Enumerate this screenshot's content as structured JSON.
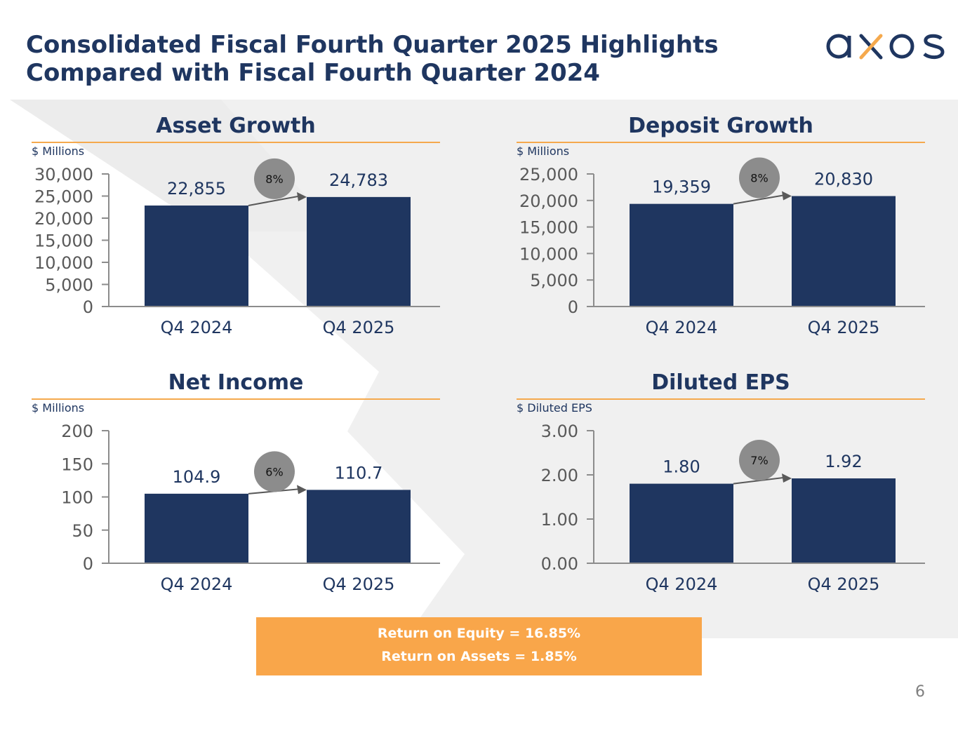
{
  "title": {
    "line1": "Consolidated Fiscal Fourth Quarter 2025 Highlights",
    "line2": "Compared with Fiscal Fourth Quarter 2024"
  },
  "logo": {
    "text": "axos",
    "color": "#1f3660",
    "accent": "#f5a94d"
  },
  "colors": {
    "bar": "#1f3660",
    "title": "#1f3660",
    "rule": "#f5a94d",
    "growth_bubble": "#8c8c8c",
    "callout_bg": "#f9a64a"
  },
  "chart_data": [
    {
      "id": "asset",
      "type": "bar",
      "title": "Asset Growth",
      "unit_label": "$ Millions",
      "categories": [
        "Q4 2024",
        "Q4 2025"
      ],
      "values": [
        22855,
        24783
      ],
      "value_labels": [
        "22,855",
        "24,783"
      ],
      "yticks": [
        0,
        5000,
        10000,
        15000,
        20000,
        25000,
        30000
      ],
      "ytick_labels": [
        "0",
        "5,000",
        "10,000",
        "15,000",
        "20,000",
        "25,000",
        "30,000"
      ],
      "ylim": [
        0,
        30000
      ],
      "growth": "8%"
    },
    {
      "id": "deposit",
      "type": "bar",
      "title": "Deposit Growth",
      "unit_label": "$ Millions",
      "categories": [
        "Q4 2024",
        "Q4 2025"
      ],
      "values": [
        19359,
        20830
      ],
      "value_labels": [
        "19,359",
        "20,830"
      ],
      "yticks": [
        0,
        5000,
        10000,
        15000,
        20000,
        25000
      ],
      "ytick_labels": [
        "0",
        "5,000",
        "10,000",
        "15,000",
        "20,000",
        "25,000"
      ],
      "ylim": [
        0,
        25000
      ],
      "growth": "8%"
    },
    {
      "id": "netincome",
      "type": "bar",
      "title": "Net Income",
      "unit_label": "$ Millions",
      "categories": [
        "Q4 2024",
        "Q4 2025"
      ],
      "values": [
        104.9,
        110.7
      ],
      "value_labels": [
        "104.9",
        "110.7"
      ],
      "yticks": [
        0,
        50,
        100,
        150,
        200
      ],
      "ytick_labels": [
        "0",
        "50",
        "100",
        "150",
        "200"
      ],
      "ylim": [
        0,
        200
      ],
      "growth": "6%"
    },
    {
      "id": "eps",
      "type": "bar",
      "title": "Diluted EPS",
      "unit_label": "$ Diluted EPS",
      "categories": [
        "Q4 2024",
        "Q4 2025"
      ],
      "values": [
        1.8,
        1.92
      ],
      "value_labels": [
        "1.80",
        "1.92"
      ],
      "yticks": [
        0,
        1,
        2,
        3
      ],
      "ytick_labels": [
        "0.00",
        "1.00",
        "2.00",
        "3.00"
      ],
      "ylim": [
        0,
        3
      ],
      "growth": "7%"
    }
  ],
  "callout": {
    "roe": "Return on Equity = 16.85%",
    "roa": "Return on Assets = 1.85%"
  },
  "page_number": "6"
}
